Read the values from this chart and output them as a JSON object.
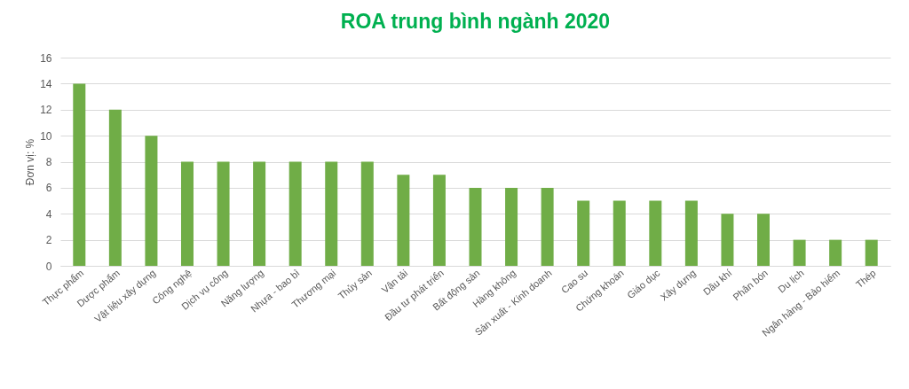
{
  "chart_data": {
    "type": "bar",
    "title": "ROA trung bình ngành 2020",
    "ylabel": "Đơn vị: %",
    "categories": [
      "Thực phẩm",
      "Dược phẩm",
      "Vật liệu xây dựng",
      "Công nghệ",
      "Dịch vụ công",
      "Năng lượng",
      "Nhựa - bao bì",
      "Thương mại",
      "Thủy sản",
      "Vận tải",
      "Đầu tư phát triển",
      "Bất động sản",
      "Hàng không",
      "Sản xuất - Kinh doanh",
      "Cao su",
      "Chứng khoán",
      "Giáo dục",
      "Xây dựng",
      "Dầu khí",
      "Phân bón",
      "Du lịch",
      "Ngân hàng - Bảo hiểm",
      "Thép"
    ],
    "values": [
      14,
      12,
      10,
      8,
      8,
      8,
      8,
      8,
      8,
      7,
      7,
      6,
      6,
      6,
      5,
      5,
      5,
      5,
      4,
      4,
      2,
      2,
      2
    ],
    "color": "#70ad47",
    "ylim": [
      0,
      16
    ],
    "yticks": [
      0,
      2,
      4,
      6,
      8,
      10,
      12,
      14,
      16
    ],
    "grid": "y"
  }
}
